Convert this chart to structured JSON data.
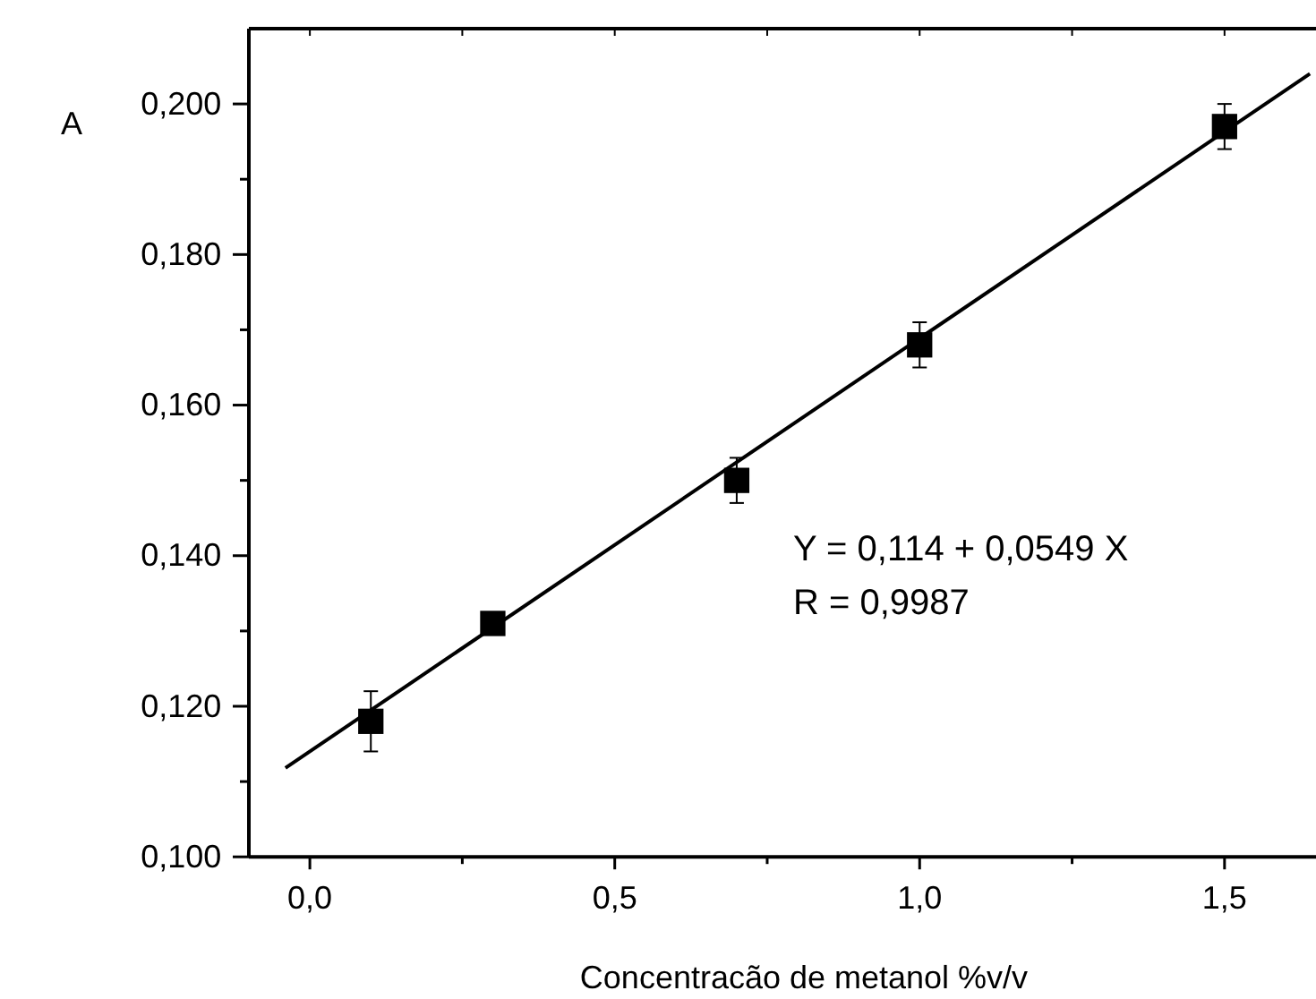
{
  "chart_data": {
    "type": "scatter",
    "xlabel": "Concentracão de metanol %v/v",
    "ylabel": "A",
    "xlim": [
      -0.1,
      1.65
    ],
    "ylim": [
      0.1,
      0.21
    ],
    "xticks": [
      {
        "value": 0,
        "label": "0,0"
      },
      {
        "value": 0.25,
        "label": null
      },
      {
        "value": 0.5,
        "label": "0,5"
      },
      {
        "value": 0.75,
        "label": null
      },
      {
        "value": 1,
        "label": "1,0"
      },
      {
        "value": 1.25,
        "label": null
      },
      {
        "value": 1.5,
        "label": "1,5"
      }
    ],
    "yticks": [
      {
        "value": 0.1,
        "label": "0,100"
      },
      {
        "value": 0.11,
        "label": null
      },
      {
        "value": 0.12,
        "label": "0,120"
      },
      {
        "value": 0.13,
        "label": null
      },
      {
        "value": 0.14,
        "label": "0,140"
      },
      {
        "value": 0.15,
        "label": null
      },
      {
        "value": 0.16,
        "label": "0,160"
      },
      {
        "value": 0.17,
        "label": null
      },
      {
        "value": 0.18,
        "label": "0,180"
      },
      {
        "value": 0.19,
        "label": null
      },
      {
        "value": 0.2,
        "label": "0,200"
      }
    ],
    "grid": false,
    "series": [
      {
        "color": "#000000",
        "marker": "square",
        "x": [
          0.1,
          0.3,
          0.7,
          1.0,
          1.5
        ],
        "values": [
          0.118,
          0.131,
          0.15,
          0.168,
          0.197
        ],
        "errors": [
          0.004,
          null,
          0.003,
          0.003,
          0.003
        ]
      },
      {
        "type": "line",
        "color": "#000000",
        "x": [
          -0.04,
          1.64
        ],
        "values": [
          0.1118,
          0.204
        ],
        "line_style": "solid"
      }
    ],
    "annotations": [
      "Y = 0,114 + 0,0549 X",
      "R = 0,9987"
    ]
  }
}
